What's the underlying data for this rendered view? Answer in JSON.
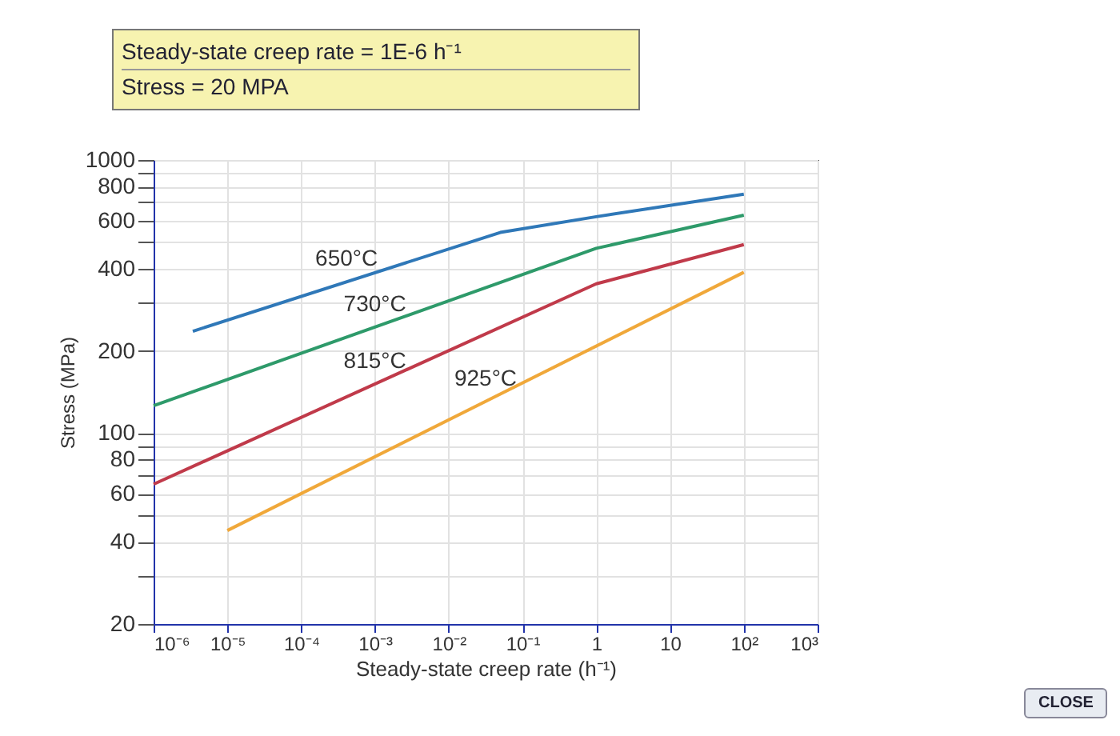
{
  "chart_data": {
    "type": "line",
    "xlabel": "Steady-state creep rate (h⁻¹)",
    "ylabel": "Stress (MPa)",
    "annotations": [
      "Steady-state creep rate =  1E-6 h⁻¹",
      "Stress = 20 MPA",
      "CLOSE"
    ],
    "series": [
      {
        "name": "650°C",
        "color": "#2f78b8",
        "x": [
          3.4e-06,
          0.05,
          1,
          100
        ],
        "values": [
          236,
          543,
          620,
          750
        ]
      },
      {
        "name": "730°C",
        "color": "#2e9a6a",
        "x": [
          1e-06,
          1,
          100
        ],
        "values": [
          126,
          475,
          628
        ]
      },
      {
        "name": "815°C",
        "color": "#c03a4a",
        "x": [
          1e-06,
          1,
          100
        ],
        "values": [
          65,
          352,
          490
        ]
      },
      {
        "name": "925°C",
        "color": "#f0a83a",
        "x": [
          1e-05,
          100
        ],
        "values": [
          44,
          388
        ]
      }
    ],
    "log": "xy",
    "grid": true,
    "legend": false,
    "line_style": "solid",
    "xlim": [
      1e-06,
      1000
    ],
    "ylim": [
      20,
      1000
    ],
    "xticks": [
      {
        "value": 1e-06,
        "label": "10⁻⁶"
      },
      {
        "value": 1e-05,
        "label": "10⁻⁵"
      },
      {
        "value": 0.0001,
        "label": "10⁻⁴"
      },
      {
        "value": 0.001,
        "label": "10⁻³"
      },
      {
        "value": 0.01,
        "label": "10⁻²"
      },
      {
        "value": 0.1,
        "label": "10⁻¹"
      },
      1,
      10,
      {
        "value": 100,
        "label": "10²"
      },
      {
        "value": 1000,
        "label": "10³"
      }
    ],
    "yticks": [
      20,
      {
        "value": 30,
        "label": null
      },
      40,
      {
        "value": 50,
        "label": null
      },
      60,
      {
        "value": 70,
        "label": null
      },
      80,
      {
        "value": 90,
        "label": null
      },
      100,
      200,
      {
        "value": 300,
        "label": null
      },
      400,
      {
        "value": 500,
        "label": null
      },
      600,
      {
        "value": 700,
        "label": null
      },
      800,
      {
        "value": 900,
        "label": null
      },
      1000
    ]
  }
}
